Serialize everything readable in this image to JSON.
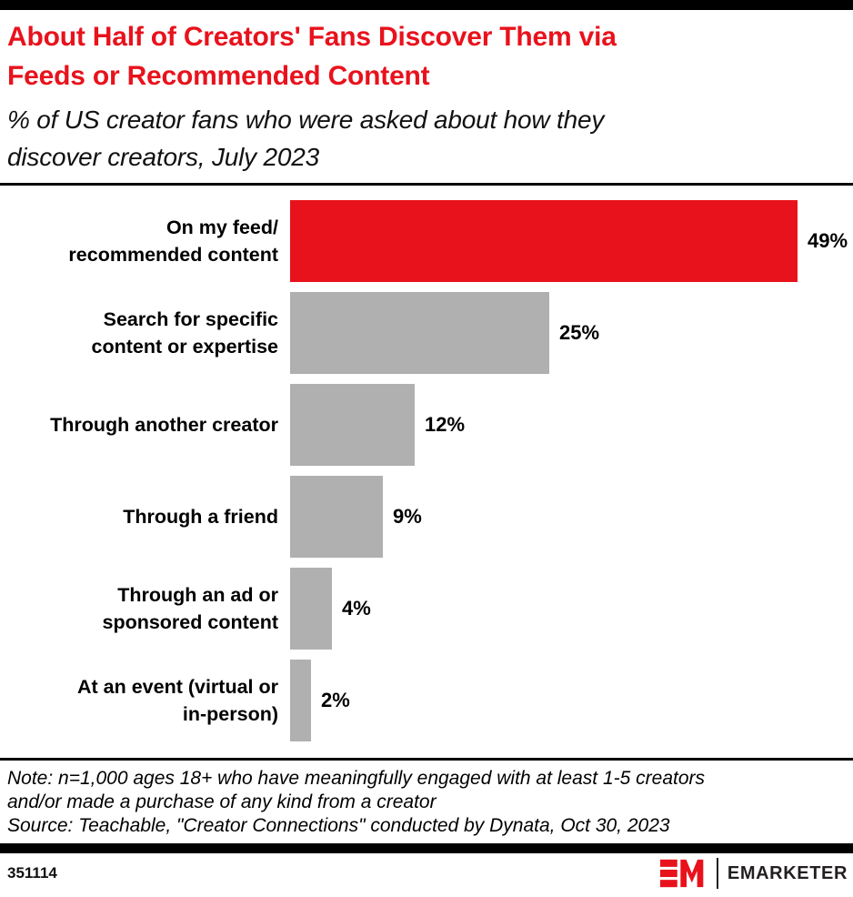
{
  "header": {
    "title_lines": [
      "About Half of Creators' Fans Discover Them via",
      "Feeds or Recommended Content"
    ],
    "subtitle_lines": [
      "% of US creator fans who were asked about how they",
      "discover creators, July 2023"
    ]
  },
  "chart_data": {
    "type": "bar",
    "orientation": "horizontal",
    "title": "About Half of Creators' Fans Discover Them via Feeds or Recommended Content",
    "subtitle": "% of US creator fans who were asked about how they discover creators, July 2023",
    "categories": [
      "On my feed/\nrecommended content",
      "Search for specific\ncontent or expertise",
      "Through another creator",
      "Through a friend",
      "Through an ad or\nsponsored content",
      "At an event (virtual or\nin-person)"
    ],
    "values": [
      49,
      25,
      12,
      9,
      4,
      2
    ],
    "unit": "%",
    "xlim": [
      0,
      49
    ],
    "grid": false,
    "legend": false,
    "value_labels": true,
    "highlight_index": 0,
    "highlight_color": "#e8121c",
    "bar_color": "#b0b0b0"
  },
  "note": {
    "lines": [
      "Note: n=1,000 ages 18+ who have meaningfully engaged with at least 1-5 creators",
      "and/or made a purchase of any kind from a creator",
      "Source: Teachable, \"Creator Connections\" conducted by Dynata, Oct 30, 2023"
    ]
  },
  "footer": {
    "chart_id": "351114",
    "brand": "EMARKETER"
  },
  "colors": {
    "accent_red": "#e8121c",
    "bar_gray": "#b0b0b0",
    "ink": "#000000",
    "brand_ink": "#231f20"
  }
}
